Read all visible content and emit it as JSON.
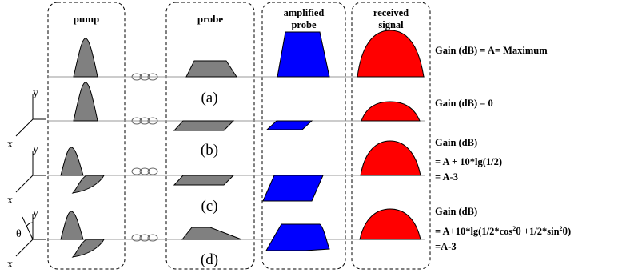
{
  "columns": {
    "pump": "pump",
    "probe": "probe",
    "amplified_probe": [
      "amplified",
      "probe"
    ],
    "received_signal": [
      "received",
      "signal"
    ]
  },
  "case_labels": [
    "(a)",
    "(b)",
    "(c)",
    "(d)"
  ],
  "axes": {
    "y": "y",
    "x": "x",
    "theta": "θ"
  },
  "gain_notes": {
    "maximum": "Gain (dB) = A= Maximum",
    "zero": "Gain (dB) = 0",
    "case_c": [
      "Gain (dB)",
      "= A + 10*lg(1/2)",
      "= A-3"
    ],
    "case_d_title": "Gain (dB)",
    "case_d_formula": {
      "p1": "= A+10*lg(1/2*cos",
      "s1": "2",
      "p2": "θ +1/2*sin",
      "s2": "2",
      "p3": "θ)"
    },
    "case_d_result": "=A-3"
  },
  "colors": {
    "pump_pulse": "#808080",
    "probe_pulse": "#808080",
    "amplified_pulse": "#0000ff",
    "received_pulse": "#ff0000",
    "fiber_line": "#999999"
  },
  "icons": [
    "fiber-coil-icon",
    "axes-icon"
  ]
}
